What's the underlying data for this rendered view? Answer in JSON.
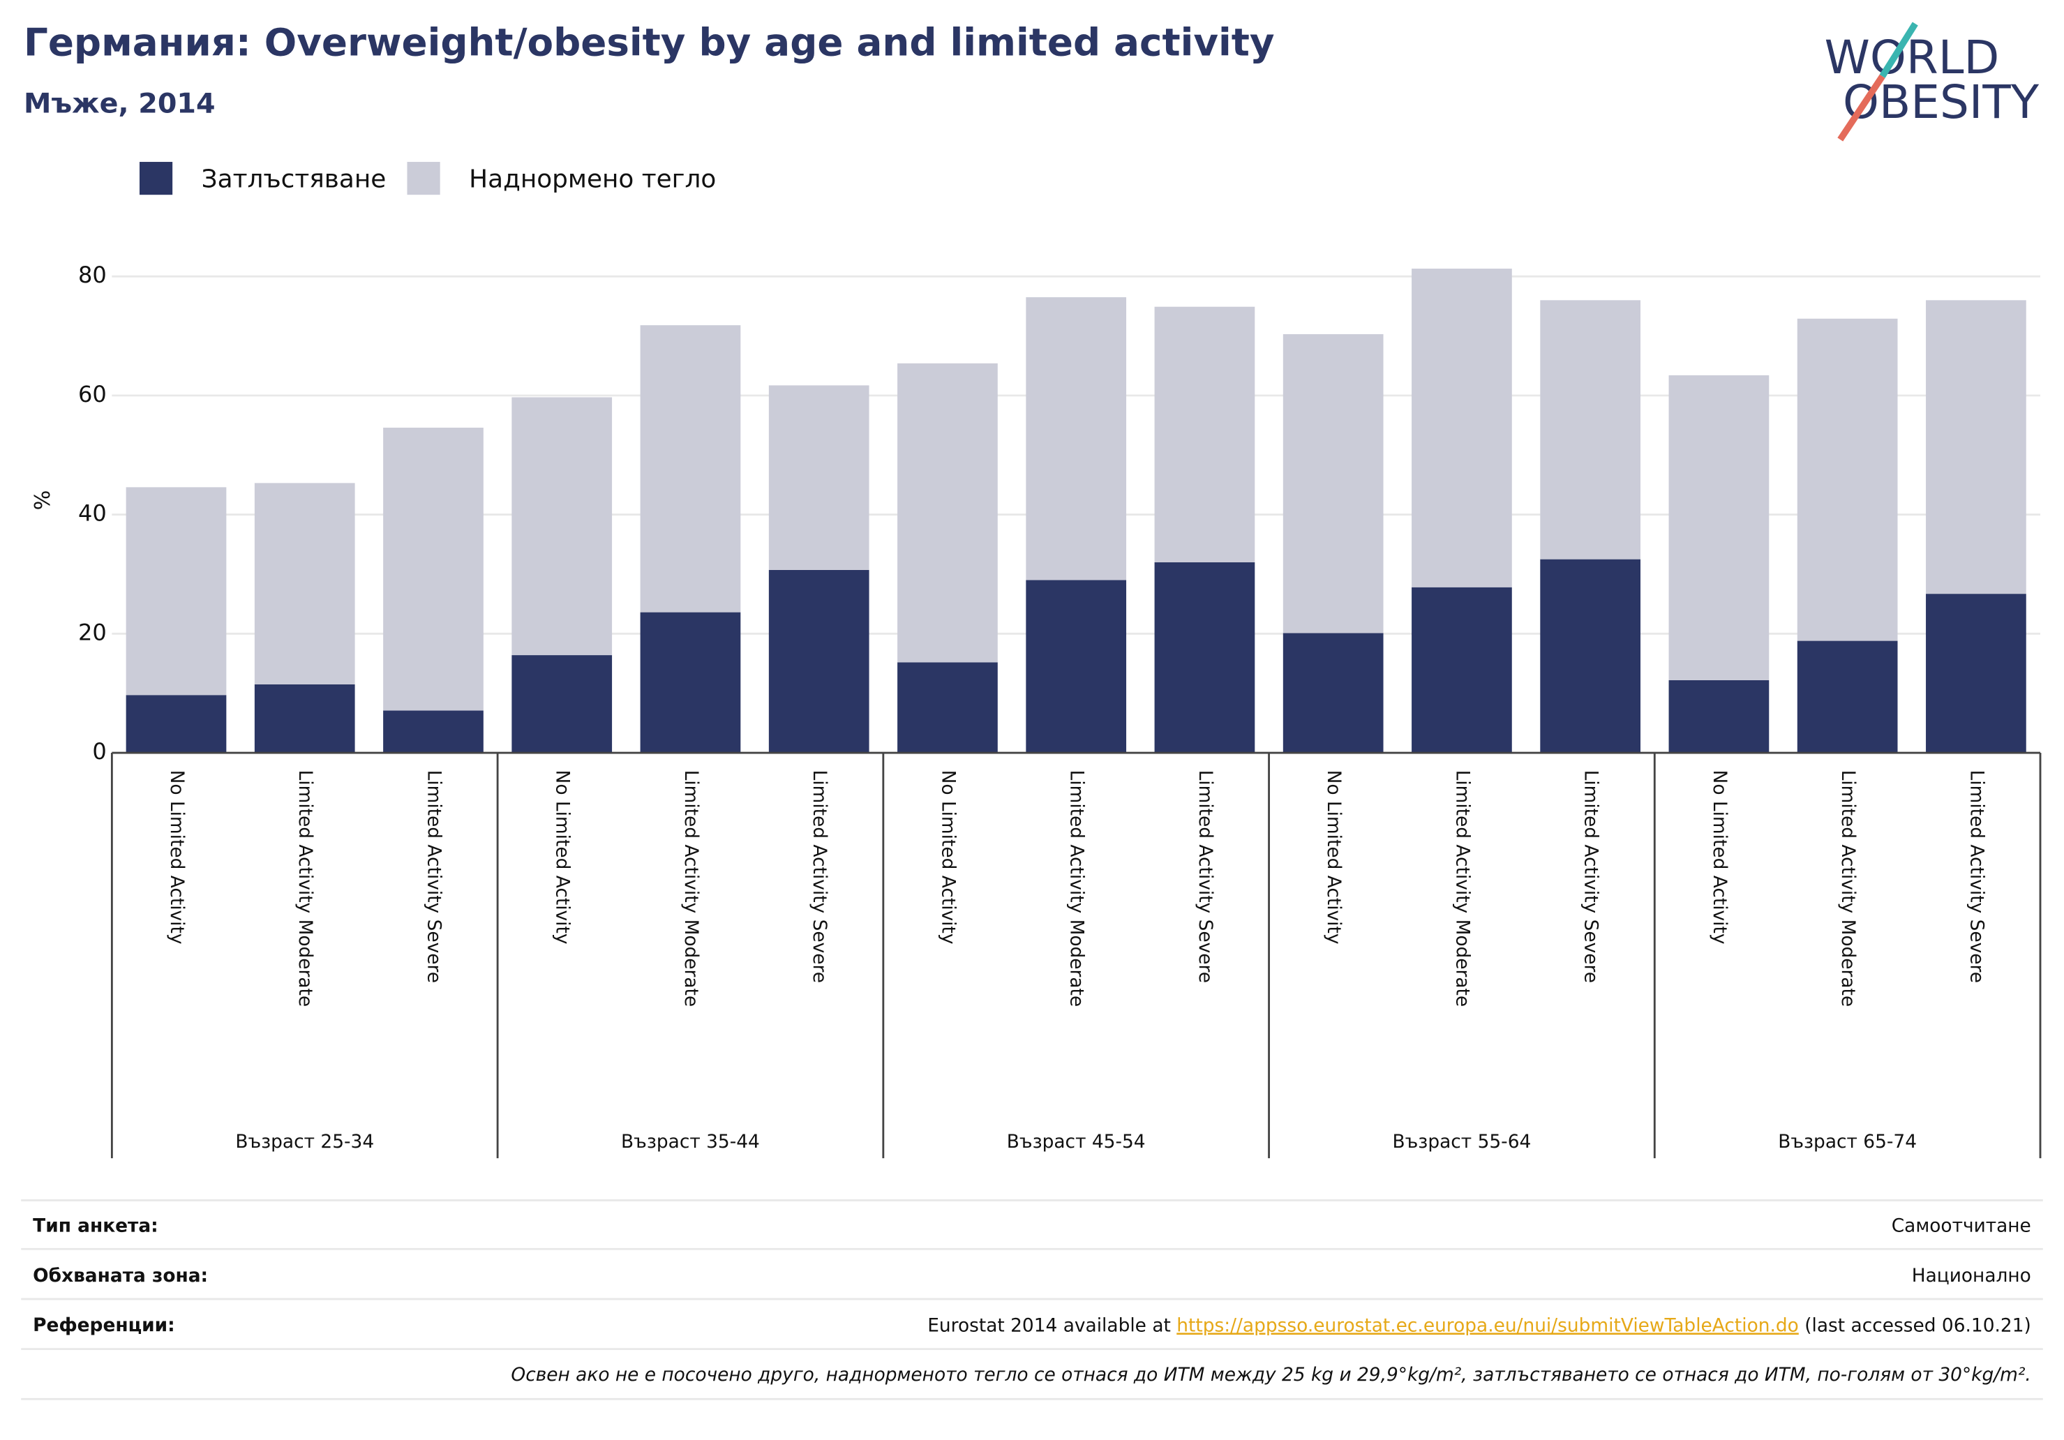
{
  "chart_data": {
    "type": "stacked_bar",
    "title": "Германия: Overweight/obesity by age and limited activity",
    "subtitle": "Мъже, 2014",
    "logo": [
      "WORLD",
      "OBESITY"
    ],
    "y_label": "%",
    "categories": [
      "No Limited Activity",
      "Limited Activity Moderate",
      "Limited Activity Severe",
      "No Limited Activity",
      "Limited Activity Moderate",
      "Limited Activity Severe",
      "No Limited Activity",
      "Limited Activity Moderate",
      "Limited Activity Severe",
      "No Limited Activity",
      "Limited Activity Moderate",
      "Limited Activity Severe",
      "No Limited Activity",
      "Limited Activity Moderate",
      "Limited Activity Severe"
    ],
    "groups": [
      "Възраст 25-34",
      "Възраст 35-44",
      "Възраст 45-54",
      "Възраст 55-64",
      "Възраст 65-74"
    ],
    "series": [
      {
        "name": "Затлъстяване",
        "color": "#2b3664",
        "values": [
          9.7,
          11.5,
          7.1,
          16.4,
          23.6,
          30.7,
          15.2,
          29.0,
          32.0,
          20.1,
          27.8,
          32.5,
          12.2,
          18.8,
          26.7
        ]
      },
      {
        "name": "Наднормено тегло",
        "color": "#cbccd8",
        "values": [
          34.9,
          33.8,
          47.5,
          43.3,
          48.2,
          31.0,
          50.2,
          47.5,
          42.9,
          50.2,
          53.5,
          43.5,
          51.2,
          54.1,
          49.3
        ]
      }
    ],
    "ylim": [
      0,
      85
    ],
    "yticks": [
      0,
      20,
      40,
      60,
      80
    ],
    "grid": true,
    "legend": "top-left"
  },
  "footer": {
    "rows": [
      {
        "label": "Тип анкета:",
        "value": "Самоотчитане"
      },
      {
        "label": "Обхваната зона:",
        "value": "Национално"
      },
      {
        "label": "Референции:",
        "value": [
          "Eurostat 2014 available at ",
          "https://appsso.eurostat.ec.europa.eu/nui/submitViewTableAction.do",
          " (last accessed 06.10.21)"
        ]
      }
    ],
    "note": "Освен ако не е посочено друго, наднорменото тегло се отнася до ИТМ между 25 kg и 29,9°kg/m², затлъстяването се отнася до ИТМ, по-голям от 30°kg/m²."
  }
}
